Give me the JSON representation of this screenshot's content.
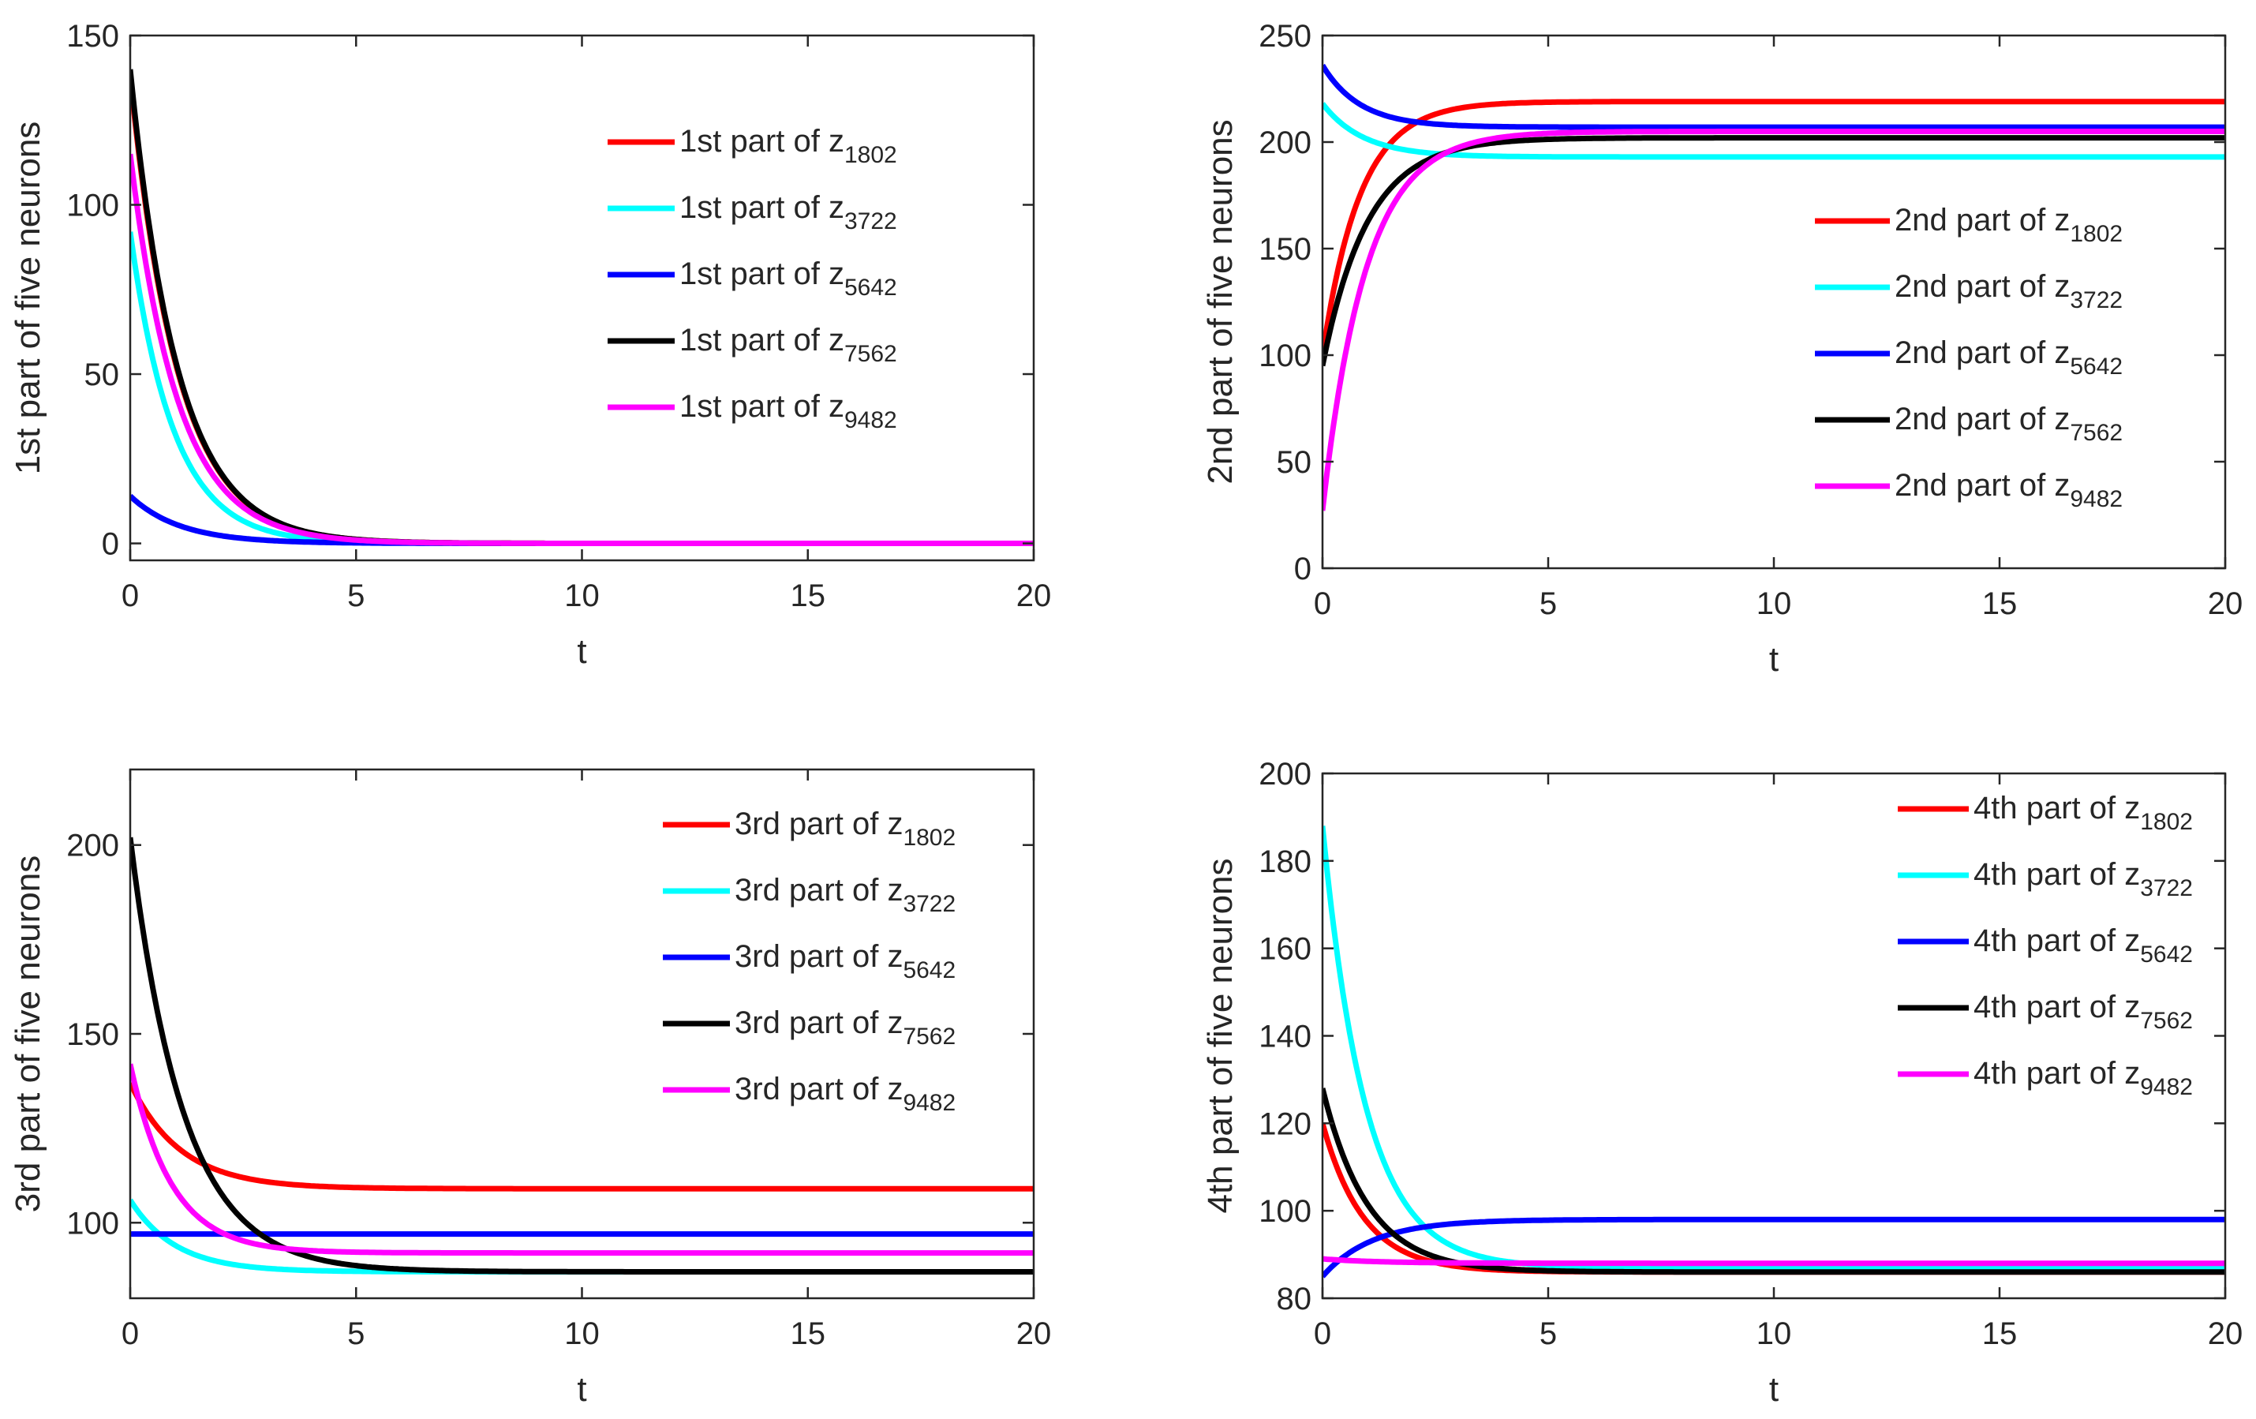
{
  "chart_data": [
    {
      "type": "line",
      "xlabel": "t",
      "ylabel": "1st part of five neurons",
      "xlim": [
        0,
        20
      ],
      "ylim": [
        -5,
        150
      ],
      "xticks": [
        0,
        5,
        10,
        15,
        20
      ],
      "yticks": [
        0,
        50,
        100,
        150
      ],
      "legend_position": "upper-right",
      "series": [
        {
          "prefix": "1st part of z",
          "subscript": "1802",
          "color": "#ff0000",
          "start": 138,
          "end": 0,
          "rate": 0.95
        },
        {
          "prefix": "1st part of z",
          "subscript": "3722",
          "color": "#00ffff",
          "start": 92,
          "end": 0,
          "rate": 1.05
        },
        {
          "prefix": "1st part of z",
          "subscript": "5642",
          "color": "#0000ff",
          "start": 14,
          "end": 0,
          "rate": 0.9
        },
        {
          "prefix": "1st part of z",
          "subscript": "7562",
          "color": "#000000",
          "start": 140,
          "end": 0,
          "rate": 0.95
        },
        {
          "prefix": "1st part of z",
          "subscript": "9482",
          "color": "#ff00ff",
          "start": 115,
          "end": 0,
          "rate": 0.95
        }
      ]
    },
    {
      "type": "line",
      "xlabel": "t",
      "ylabel": "2nd part of five neurons",
      "xlim": [
        0,
        20
      ],
      "ylim": [
        0,
        250
      ],
      "xticks": [
        0,
        5,
        10,
        15,
        20
      ],
      "yticks": [
        0,
        50,
        100,
        150,
        200,
        250
      ],
      "legend_position": "right",
      "series": [
        {
          "prefix": "2nd part of z",
          "subscript": "1802",
          "color": "#ff0000",
          "start": 100,
          "end": 219,
          "rate": 1.2
        },
        {
          "prefix": "2nd part of z",
          "subscript": "3722",
          "color": "#00ffff",
          "start": 218,
          "end": 193,
          "rate": 1.1
        },
        {
          "prefix": "2nd part of z",
          "subscript": "5642",
          "color": "#0000ff",
          "start": 236,
          "end": 207,
          "rate": 1.2
        },
        {
          "prefix": "2nd part of z",
          "subscript": "7562",
          "color": "#000000",
          "start": 95,
          "end": 202,
          "rate": 1.0
        },
        {
          "prefix": "2nd part of z",
          "subscript": "9482",
          "color": "#ff00ff",
          "start": 27,
          "end": 205,
          "rate": 1.05
        }
      ]
    },
    {
      "type": "line",
      "xlabel": "t",
      "ylabel": "3rd part of five neurons",
      "xlim": [
        0,
        20
      ],
      "ylim": [
        80,
        220
      ],
      "xticks": [
        0,
        5,
        10,
        15,
        20
      ],
      "yticks": [
        100,
        150,
        200
      ],
      "legend_position": "upper-right",
      "series": [
        {
          "prefix": "3rd part of z",
          "subscript": "1802",
          "color": "#ff0000",
          "start": 137,
          "end": 109,
          "rate": 0.9
        },
        {
          "prefix": "3rd part of z",
          "subscript": "3722",
          "color": "#00ffff",
          "start": 106,
          "end": 87,
          "rate": 1.0
        },
        {
          "prefix": "3rd part of z",
          "subscript": "5642",
          "color": "#0000ff",
          "start": 97,
          "end": 97,
          "rate": 1.0
        },
        {
          "prefix": "3rd part of z",
          "subscript": "7562",
          "color": "#000000",
          "start": 202,
          "end": 87,
          "rate": 0.85
        },
        {
          "prefix": "3rd part of z",
          "subscript": "9482",
          "color": "#ff00ff",
          "start": 142,
          "end": 92,
          "rate": 1.1
        }
      ]
    },
    {
      "type": "line",
      "xlabel": "t",
      "ylabel": "4th part of five neurons",
      "xlim": [
        0,
        20
      ],
      "ylim": [
        80,
        200
      ],
      "xticks": [
        0,
        5,
        10,
        15,
        20
      ],
      "yticks": [
        80,
        100,
        120,
        140,
        160,
        180,
        200
      ],
      "legend_position": "upper-right",
      "series": [
        {
          "prefix": "4th part of z",
          "subscript": "1802",
          "color": "#ff0000",
          "start": 120,
          "end": 86,
          "rate": 1.1
        },
        {
          "prefix": "4th part of z",
          "subscript": "3722",
          "color": "#00ffff",
          "start": 188,
          "end": 87,
          "rate": 1.05
        },
        {
          "prefix": "4th part of z",
          "subscript": "5642",
          "color": "#0000ff",
          "start": 85,
          "end": 98,
          "rate": 0.9
        },
        {
          "prefix": "4th part of z",
          "subscript": "7562",
          "color": "#000000",
          "start": 128,
          "end": 86,
          "rate": 1.0
        },
        {
          "prefix": "4th part of z",
          "subscript": "9482",
          "color": "#ff00ff",
          "start": 89,
          "end": 88,
          "rate": 0.8
        }
      ]
    }
  ]
}
